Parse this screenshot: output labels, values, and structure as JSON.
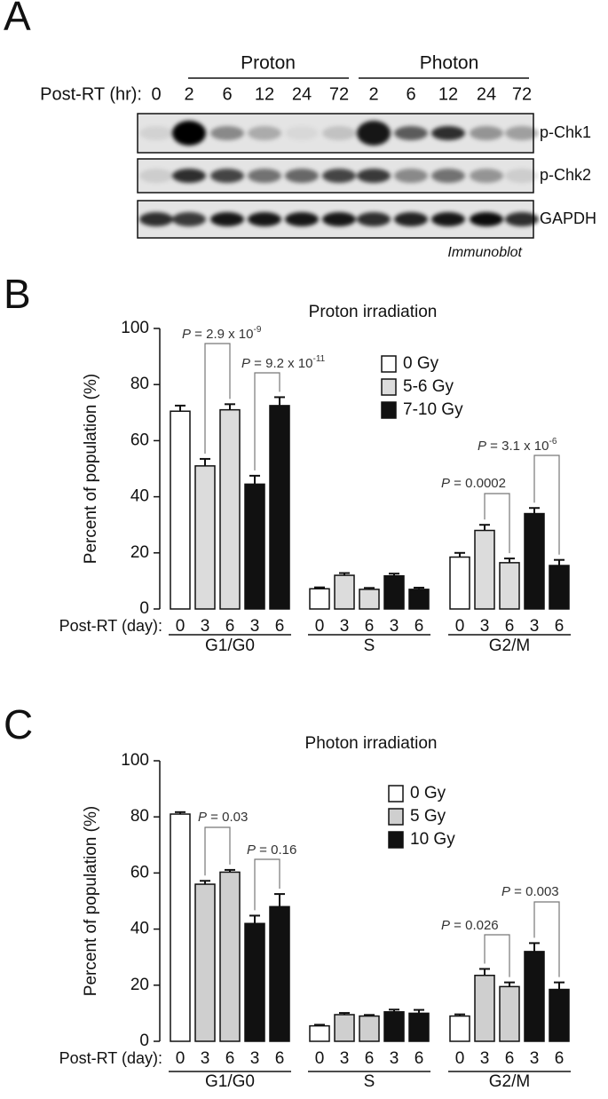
{
  "blot": {
    "panel_label": "A",
    "groups": [
      "Proton",
      "Photon"
    ],
    "time_label": "Post-RT (hr):",
    "times": [
      "0",
      "2",
      "6",
      "12",
      "24",
      "72",
      "2",
      "6",
      "12",
      "24",
      "72"
    ],
    "blots": [
      "p-Chk1",
      "p-Chk2",
      "GAPDH"
    ],
    "method": "Immunoblot"
  },
  "chart_data": [
    {
      "type": "bar",
      "panel_label": "B",
      "title": "Proton irradiation",
      "y_label": "Percent of population (%)",
      "x_label": "Post-RT (day):",
      "categories": [
        "0",
        "3",
        "6",
        "3",
        "6",
        "0",
        "3",
        "6",
        "3",
        "6",
        "0",
        "3",
        "6",
        "3",
        "6"
      ],
      "groups": [
        "G1/G0",
        "S",
        "G2/M"
      ],
      "ylim": [
        0,
        100
      ],
      "yticks": [
        0,
        20,
        40,
        60,
        80,
        100
      ],
      "series": [
        {
          "name": "0 Gy",
          "color": "#ffffff",
          "values": [
            70.5,
            null,
            null,
            null,
            null,
            7.2,
            null,
            null,
            null,
            null,
            18.5,
            null,
            null,
            null,
            null
          ],
          "errors": [
            2,
            null,
            null,
            null,
            null,
            0.5,
            null,
            null,
            null,
            null,
            1.5,
            null,
            null,
            null,
            null
          ]
        },
        {
          "name": "5-6 Gy",
          "color": "#dcdcdc",
          "values": [
            null,
            51,
            71,
            null,
            null,
            null,
            12,
            7,
            null,
            null,
            null,
            28,
            16.5,
            null,
            null
          ],
          "errors": [
            null,
            2.5,
            2,
            null,
            null,
            null,
            0.8,
            0.5,
            null,
            null,
            null,
            2,
            1.5,
            null,
            null
          ]
        },
        {
          "name": "7-10 Gy",
          "color": "#111111",
          "values": [
            null,
            null,
            null,
            44.5,
            72.5,
            null,
            null,
            null,
            11.8,
            7,
            null,
            null,
            null,
            34,
            15.5
          ],
          "errors": [
            null,
            null,
            null,
            3,
            3,
            null,
            null,
            null,
            0.8,
            0.6,
            null,
            null,
            null,
            2,
            2
          ]
        }
      ],
      "annotations": [
        {
          "p": "P",
          "text": " = 2.9 x 10",
          "sup": "-9"
        },
        {
          "p": "P",
          "text": " = 9.2 x 10",
          "sup": "-11"
        },
        {
          "p": "P",
          "text": " = 0.0002"
        },
        {
          "p": "P",
          "text": " = 3.1 x 10",
          "sup": "-6"
        }
      ]
    },
    {
      "type": "bar",
      "panel_label": "C",
      "title": "Photon irradiation",
      "y_label": "Percent of population (%)",
      "x_label": "Post-RT (day):",
      "categories": [
        "0",
        "3",
        "6",
        "3",
        "6",
        "0",
        "3",
        "6",
        "3",
        "6",
        "0",
        "3",
        "6",
        "3",
        "6"
      ],
      "groups": [
        "G1/G0",
        "S",
        "G2/M"
      ],
      "ylim": [
        0,
        100
      ],
      "yticks": [
        0,
        20,
        40,
        60,
        80,
        100
      ],
      "series": [
        {
          "name": "0 Gy",
          "color": "#ffffff",
          "values": [
            81,
            null,
            null,
            null,
            null,
            5.5,
            null,
            null,
            null,
            null,
            9,
            null,
            null,
            null,
            null
          ],
          "errors": [
            0.7,
            null,
            null,
            null,
            null,
            0.4,
            null,
            null,
            null,
            null,
            0.6,
            null,
            null,
            null,
            null
          ]
        },
        {
          "name": "5 Gy",
          "color": "#cfcfcf",
          "values": [
            null,
            56,
            60.3,
            null,
            null,
            null,
            9.5,
            9,
            null,
            null,
            null,
            23.5,
            19.5,
            null,
            null
          ],
          "errors": [
            null,
            1.2,
            0.8,
            null,
            null,
            null,
            0.6,
            0.4,
            null,
            null,
            null,
            2.3,
            1.5,
            null,
            null
          ]
        },
        {
          "name": "10 Gy",
          "color": "#111111",
          "values": [
            null,
            null,
            null,
            42,
            48,
            null,
            null,
            null,
            10.5,
            10,
            null,
            null,
            null,
            32,
            18.5
          ],
          "errors": [
            null,
            null,
            null,
            2.8,
            4.5,
            null,
            null,
            null,
            0.8,
            1.2,
            null,
            null,
            null,
            3,
            2.5
          ]
        }
      ],
      "annotations": [
        {
          "p": "P",
          "text": " = 0.03"
        },
        {
          "p": "P",
          "text": " = 0.16"
        },
        {
          "p": "P",
          "text": " = 0.026"
        },
        {
          "p": "P",
          "text": " = 0.003"
        }
      ]
    }
  ]
}
